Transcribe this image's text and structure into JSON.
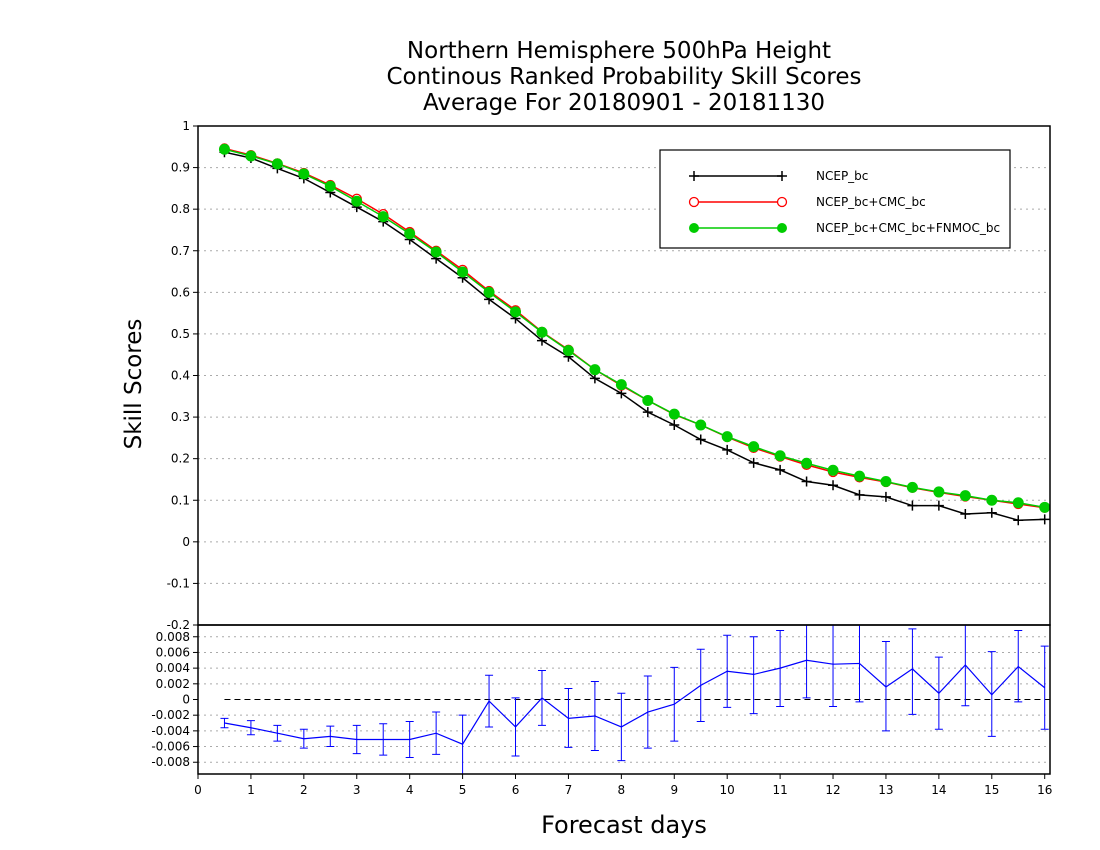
{
  "title_lines": [
    "Northern Hemisphere 500hPa Height",
    "Continous Ranked Probability Skill Scores",
    "Average For 20180901 - 20181130"
  ],
  "chart_data": [
    {
      "type": "line",
      "ylabel": "Skill Scores",
      "xlim": [
        0,
        16.1
      ],
      "ylim": [
        -0.2,
        1
      ],
      "grid": true,
      "legend_position": "top-right",
      "x": [
        0.5,
        1,
        1.5,
        2,
        2.5,
        3,
        3.5,
        4,
        4.5,
        5,
        5.5,
        6,
        6.5,
        7,
        7.5,
        8,
        8.5,
        9,
        9.5,
        10,
        10.5,
        11,
        11.5,
        12,
        12.5,
        13,
        13.5,
        14,
        14.5,
        15,
        15.5,
        16
      ],
      "yticks": [
        1,
        0.9,
        0.8,
        0.7,
        0.6,
        0.5,
        0.4,
        0.3,
        0.2,
        0.1,
        0,
        -0.1,
        -0.2
      ],
      "series": [
        {
          "name": "NCEP_bc",
          "color": "#000000",
          "marker": "plus",
          "values": [
            0.937,
            0.923,
            0.898,
            0.874,
            0.84,
            0.805,
            0.77,
            0.727,
            0.681,
            0.635,
            0.583,
            0.537,
            0.484,
            0.445,
            0.393,
            0.357,
            0.312,
            0.281,
            0.246,
            0.221,
            0.19,
            0.173,
            0.145,
            0.136,
            0.113,
            0.108,
            0.087,
            0.087,
            0.067,
            0.07,
            0.052,
            0.054
          ]
        },
        {
          "name": "NCEP_bc+CMC_bc",
          "color": "#ff0000",
          "marker": "open-circle",
          "values": [
            0.946,
            0.93,
            0.91,
            0.887,
            0.858,
            0.825,
            0.788,
            0.745,
            0.7,
            0.654,
            0.603,
            0.557,
            0.505,
            0.462,
            0.414,
            0.376,
            0.34,
            0.306,
            0.281,
            0.252,
            0.226,
            0.205,
            0.185,
            0.168,
            0.155,
            0.144,
            0.13,
            0.119,
            0.109,
            0.1,
            0.091,
            0.082
          ]
        },
        {
          "name": "NCEP_bc+CMC_bc+FNMOC_bc",
          "color": "#00cc00",
          "marker": "filled-circle",
          "values": [
            0.944,
            0.928,
            0.909,
            0.885,
            0.855,
            0.819,
            0.782,
            0.741,
            0.697,
            0.649,
            0.6,
            0.553,
            0.504,
            0.46,
            0.414,
            0.378,
            0.34,
            0.307,
            0.281,
            0.253,
            0.229,
            0.207,
            0.189,
            0.172,
            0.158,
            0.145,
            0.131,
            0.12,
            0.111,
            0.1,
            0.094,
            0.083
          ]
        }
      ]
    },
    {
      "type": "line",
      "xlabel": "Forecast days",
      "xlim": [
        0,
        16.1
      ],
      "ylim": [
        -0.0095,
        0.0095
      ],
      "xticks": [
        "0",
        "1",
        "2",
        "3",
        "4",
        "5",
        "6",
        "7",
        "8",
        "9",
        "10",
        "11",
        "12",
        "13",
        "14",
        "15",
        "16"
      ],
      "yticks": [
        "0.008",
        "0.006",
        "0.004",
        "0.002",
        "0",
        "-0.002",
        "-0.004",
        "-0.006",
        "-0.008"
      ],
      "reference_line": 0,
      "series": [
        {
          "color": "#0000ff",
          "x": [
            0.5,
            1,
            1.5,
            2,
            2.5,
            3,
            3.5,
            4,
            4.5,
            5,
            5.5,
            6,
            6.5,
            7,
            7.5,
            8,
            8.5,
            9,
            9.5,
            10,
            10.5,
            11,
            11.5,
            12,
            12.5,
            13,
            13.5,
            14,
            14.5,
            15,
            15.5,
            16
          ],
          "values": [
            -0.003,
            -0.0036,
            -0.0043,
            -0.005,
            -0.0047,
            -0.0051,
            -0.0051,
            -0.0051,
            -0.0043,
            -0.0057,
            -0.0002,
            -0.0035,
            0.0002,
            -0.0024,
            -0.0021,
            -0.0035,
            -0.0016,
            -0.0006,
            0.0018,
            0.0036,
            0.0032,
            0.004,
            0.005,
            0.0045,
            0.0046,
            0.0016,
            0.0039,
            0.0008,
            0.0044,
            0.0006,
            0.0042,
            0.0015
          ],
          "error_low": [
            -0.0036,
            -0.0045,
            -0.0053,
            -0.0062,
            -0.006,
            -0.0069,
            -0.0071,
            -0.0074,
            -0.007,
            -0.0095,
            -0.0035,
            -0.0072,
            -0.0033,
            -0.0061,
            -0.0065,
            -0.0078,
            -0.0062,
            -0.0053,
            -0.0028,
            -0.001,
            -0.0018,
            -0.0009,
            0.0002,
            -0.0009,
            -0.0003,
            -0.004,
            -0.0019,
            -0.0038,
            -0.0008,
            -0.0047,
            -0.0003,
            -0.0038
          ],
          "error_high": [
            -0.0024,
            -0.0027,
            -0.0033,
            -0.0038,
            -0.0034,
            -0.0033,
            -0.0031,
            -0.0028,
            -0.0016,
            -0.002,
            0.0031,
            0.0002,
            0.0037,
            0.0014,
            0.0023,
            0.0008,
            0.003,
            0.0041,
            0.0064,
            0.0082,
            0.008,
            0.0088,
            0.0095,
            0.0095,
            0.0095,
            0.0074,
            0.009,
            0.0054,
            0.0095,
            0.0061,
            0.0088,
            0.0068
          ]
        }
      ]
    }
  ]
}
